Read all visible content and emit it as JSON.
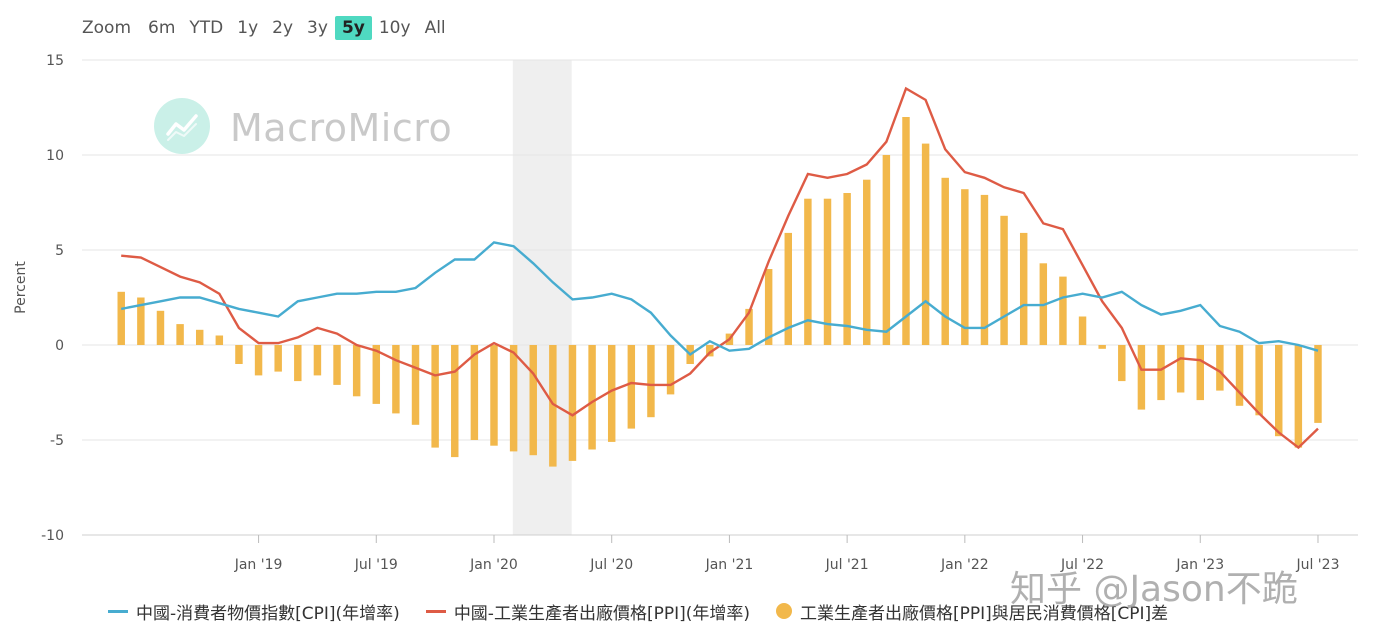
{
  "toolbar": {
    "zoom_label": "Zoom",
    "ranges": [
      "6m",
      "YTD",
      "1y",
      "2y",
      "3y",
      "5y",
      "10y",
      "All"
    ],
    "active": "5y"
  },
  "watermark": {
    "brand": "MacroMicro",
    "zhihu": "知乎 @Jason不跪"
  },
  "chart_data": {
    "type": "line",
    "ylabel": "Percent",
    "ylim": [
      -10,
      15
    ],
    "yticks": [
      -10,
      -5,
      0,
      5,
      10,
      15
    ],
    "x_range": [
      2018.25,
      2023.67
    ],
    "x_ticks": [
      {
        "label": "Jan '19",
        "x": 2019.0
      },
      {
        "label": "Jul '19",
        "x": 2019.5
      },
      {
        "label": "Jan '20",
        "x": 2020.0
      },
      {
        "label": "Jul '20",
        "x": 2020.5
      },
      {
        "label": "Jan '21",
        "x": 2021.0
      },
      {
        "label": "Jul '21",
        "x": 2021.5
      },
      {
        "label": "Jan '22",
        "x": 2022.0
      },
      {
        "label": "Jul '22",
        "x": 2022.5
      },
      {
        "label": "Jan '23",
        "x": 2023.0
      },
      {
        "label": "Jul '23",
        "x": 2023.5
      }
    ],
    "shaded_band": {
      "x0": 2020.08,
      "x1": 2020.33
    },
    "grid": true,
    "legend_position": "bottom",
    "months": [
      "2018-06",
      "2018-07",
      "2018-08",
      "2018-09",
      "2018-10",
      "2018-11",
      "2018-12",
      "2019-01",
      "2019-02",
      "2019-03",
      "2019-04",
      "2019-05",
      "2019-06",
      "2019-07",
      "2019-08",
      "2019-09",
      "2019-10",
      "2019-11",
      "2019-12",
      "2020-01",
      "2020-02",
      "2020-03",
      "2020-04",
      "2020-05",
      "2020-06",
      "2020-07",
      "2020-08",
      "2020-09",
      "2020-10",
      "2020-11",
      "2020-12",
      "2021-01",
      "2021-02",
      "2021-03",
      "2021-04",
      "2021-05",
      "2021-06",
      "2021-07",
      "2021-08",
      "2021-09",
      "2021-10",
      "2021-11",
      "2021-12",
      "2022-01",
      "2022-02",
      "2022-03",
      "2022-04",
      "2022-05",
      "2022-06",
      "2022-07",
      "2022-08",
      "2022-09",
      "2022-10",
      "2022-11",
      "2022-12",
      "2023-01",
      "2023-02",
      "2023-03",
      "2023-04",
      "2023-05",
      "2023-06",
      "2023-07"
    ],
    "series": [
      {
        "name": "中國-消費者物價指數[CPI](年增率)",
        "kind": "line",
        "color": "#47acd0",
        "values": [
          1.9,
          2.1,
          2.3,
          2.5,
          2.5,
          2.2,
          1.9,
          1.7,
          1.5,
          2.3,
          2.5,
          2.7,
          2.7,
          2.8,
          2.8,
          3.0,
          3.8,
          4.5,
          4.5,
          5.4,
          5.2,
          4.3,
          3.3,
          2.4,
          2.5,
          2.7,
          2.4,
          1.7,
          0.5,
          -0.5,
          0.2,
          -0.3,
          -0.2,
          0.4,
          0.9,
          1.3,
          1.1,
          1.0,
          0.8,
          0.7,
          1.5,
          2.3,
          1.5,
          0.9,
          0.9,
          1.5,
          2.1,
          2.1,
          2.5,
          2.7,
          2.5,
          2.8,
          2.1,
          1.6,
          1.8,
          2.1,
          1.0,
          0.7,
          0.1,
          0.2,
          0.0,
          -0.3
        ]
      },
      {
        "name": "中國-工業生產者出廠價格[PPI](年增率)",
        "kind": "line",
        "color": "#de5b45",
        "values": [
          4.7,
          4.6,
          4.1,
          3.6,
          3.3,
          2.7,
          0.9,
          0.1,
          0.1,
          0.4,
          0.9,
          0.6,
          0.0,
          -0.3,
          -0.8,
          -1.2,
          -1.6,
          -1.4,
          -0.5,
          0.1,
          -0.4,
          -1.5,
          -3.1,
          -3.7,
          -3.0,
          -2.4,
          -2.0,
          -2.1,
          -2.1,
          -1.5,
          -0.4,
          0.3,
          1.7,
          4.4,
          6.8,
          9.0,
          8.8,
          9.0,
          9.5,
          10.7,
          13.5,
          12.9,
          10.3,
          9.1,
          8.8,
          8.3,
          8.0,
          6.4,
          6.1,
          4.2,
          2.3,
          0.9,
          -1.3,
          -1.3,
          -0.7,
          -0.8,
          -1.4,
          -2.5,
          -3.6,
          -4.6,
          -5.4,
          -4.4
        ]
      },
      {
        "name": "工業生產者出廠價格[PPI]與居民消費價格[CPI]差",
        "kind": "bar",
        "color": "#f2b84b",
        "values": [
          2.8,
          2.5,
          1.8,
          1.1,
          0.8,
          0.5,
          -1.0,
          -1.6,
          -1.4,
          -1.9,
          -1.6,
          -2.1,
          -2.7,
          -3.1,
          -3.6,
          -4.2,
          -5.4,
          -5.9,
          -5.0,
          -5.3,
          -5.6,
          -5.8,
          -6.4,
          -6.1,
          -5.5,
          -5.1,
          -4.4,
          -3.8,
          -2.6,
          -1.0,
          -0.6,
          0.6,
          1.9,
          4.0,
          5.9,
          7.7,
          7.7,
          8.0,
          8.7,
          10.0,
          12.0,
          10.6,
          8.8,
          8.2,
          7.9,
          6.8,
          5.9,
          4.3,
          3.6,
          1.5,
          -0.2,
          -1.9,
          -3.4,
          -2.9,
          -2.5,
          -2.9,
          -2.4,
          -3.2,
          -3.7,
          -4.8,
          -5.4,
          -4.1
        ]
      }
    ]
  }
}
